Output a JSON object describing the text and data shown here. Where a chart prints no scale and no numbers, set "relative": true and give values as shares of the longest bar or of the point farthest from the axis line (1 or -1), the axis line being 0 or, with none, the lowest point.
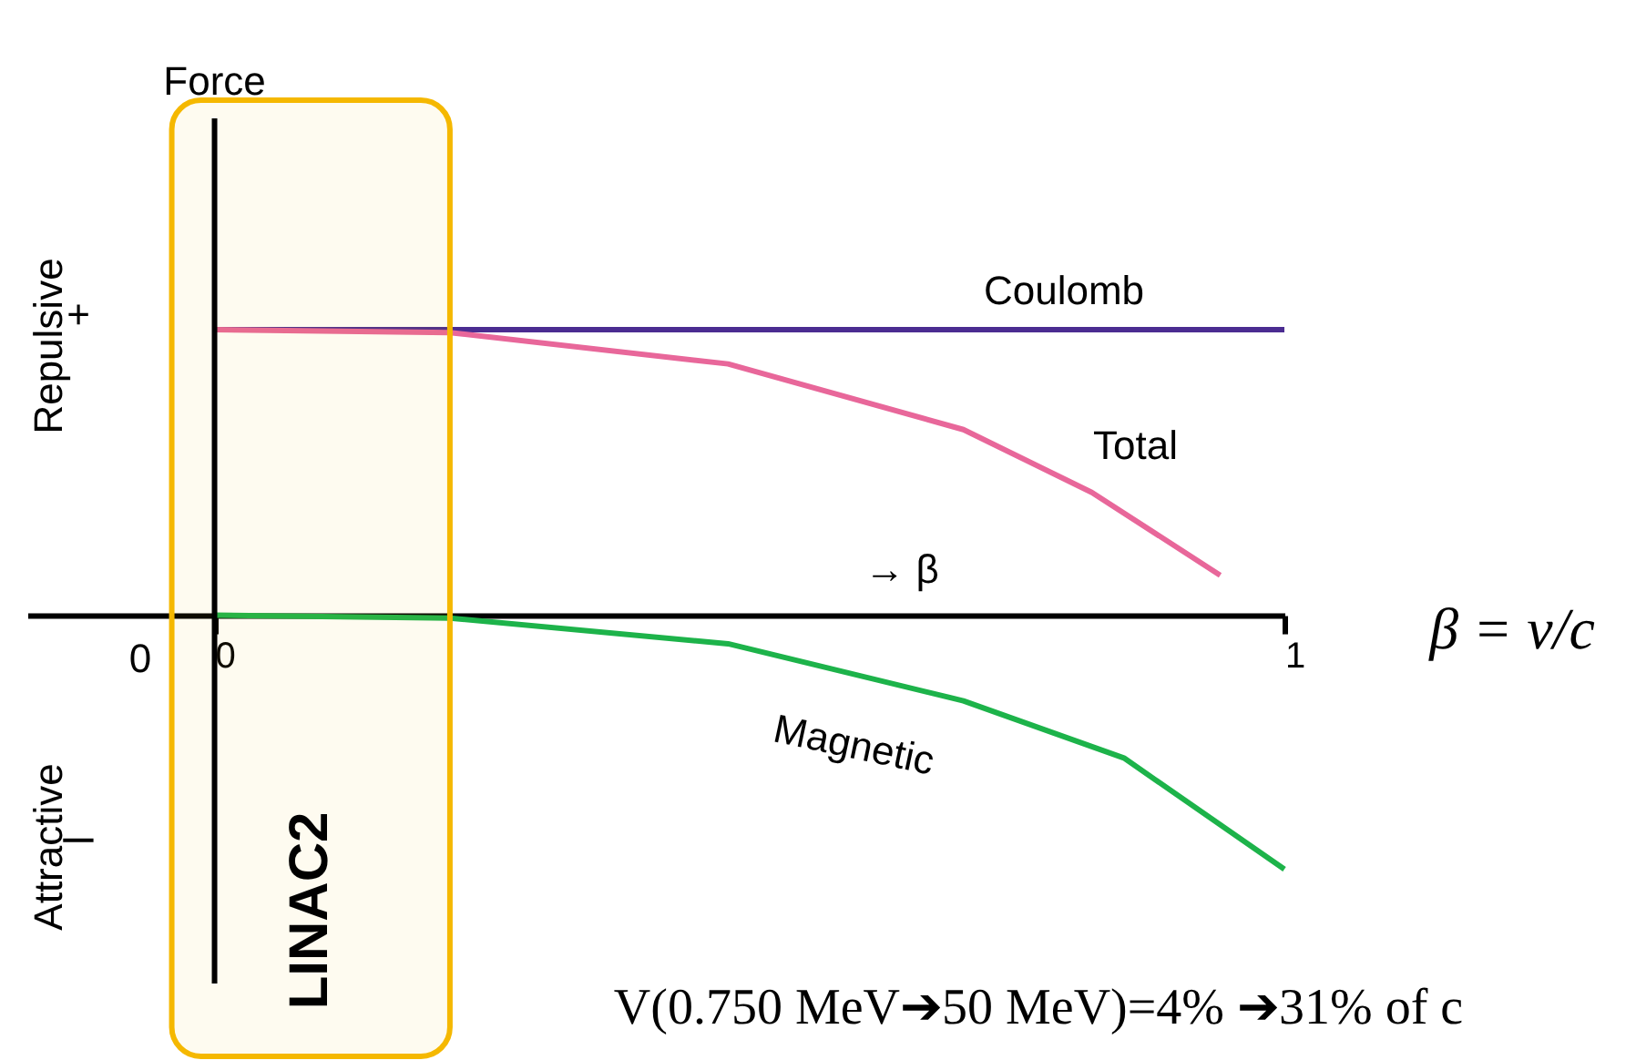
{
  "chart_data": {
    "type": "line",
    "relative": true,
    "xlabel": "→ β",
    "series": [
      {
        "name": "Coulomb",
        "color": "#4b2c91",
        "x": [
          0,
          1.0
        ],
        "values": [
          1,
          1
        ]
      },
      {
        "name": "Total",
        "color": "#e8679a",
        "x": [
          0,
          0.22,
          0.48,
          0.7,
          0.82,
          0.94
        ],
        "values": [
          1,
          0.99,
          0.88,
          0.65,
          0.43,
          0.14
        ]
      },
      {
        "name": "Magnetic",
        "color": "#1db34a",
        "x": [
          0,
          0.22,
          0.48,
          0.7,
          0.85,
          1.0
        ],
        "values": [
          0,
          -0.01,
          -0.1,
          -0.3,
          -0.5,
          -0.89
        ]
      }
    ],
    "xlim": [
      -0.175,
      1
    ],
    "xticks": [
      0,
      1
    ],
    "tick_labels": "x",
    "bands": [
      {
        "axis": "x",
        "from": -0.04,
        "to": 0.22,
        "label": "LINAC2",
        "color": "#f5b800"
      }
    ],
    "annotations": [
      "Force",
      "Repulsive",
      "+",
      "Attractive",
      "–",
      "0",
      "β = v/c",
      "V(0.750 MeV➔50 MeV)=4% ➔31% of c"
    ]
  }
}
